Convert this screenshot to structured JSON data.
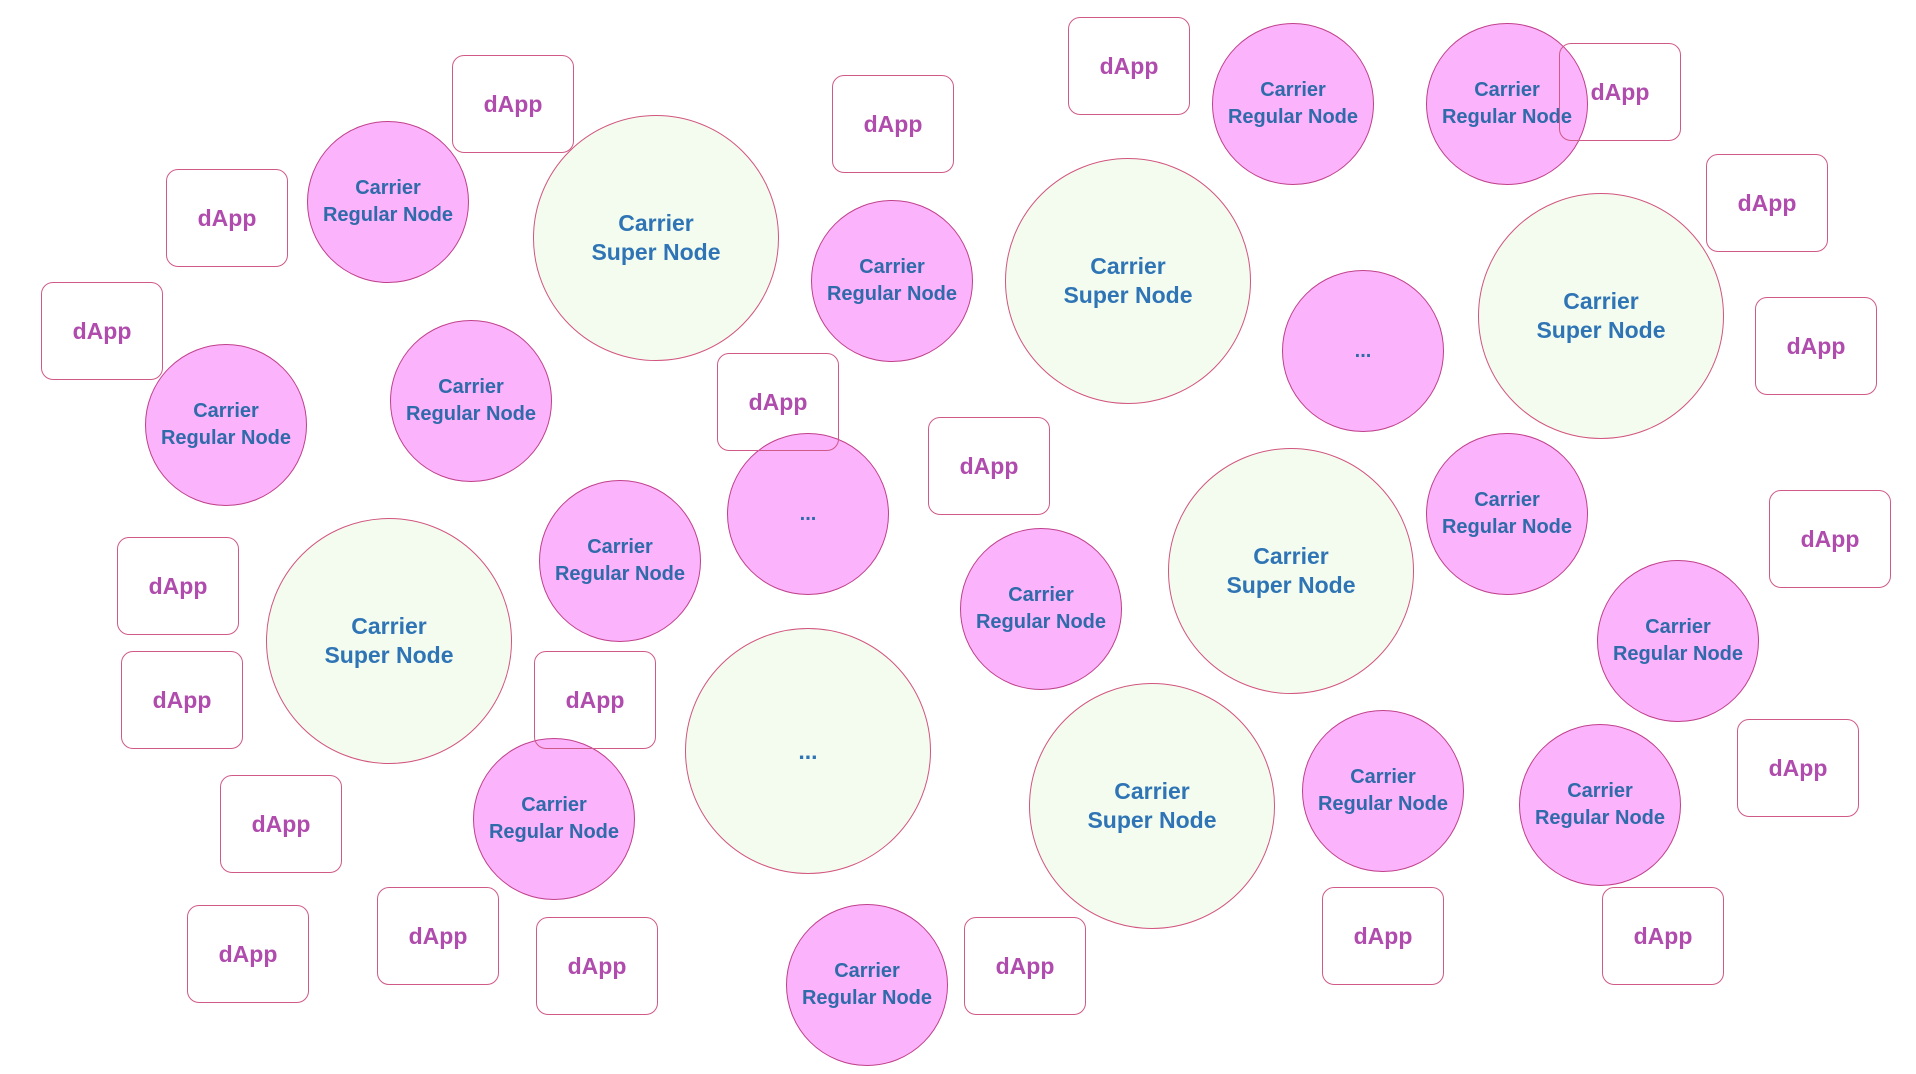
{
  "labels": {
    "super": "Carrier\nSuper Node",
    "regular": "Carrier\nRegular Node",
    "more": "...",
    "dapp": "dApp"
  },
  "colors": {
    "super_fill": "#f3fcef",
    "regular_fill": "#fbb3fb",
    "border": "#d2557f",
    "node_text": "#2f74b5",
    "dapp_text": "#b04cad"
  }
}
